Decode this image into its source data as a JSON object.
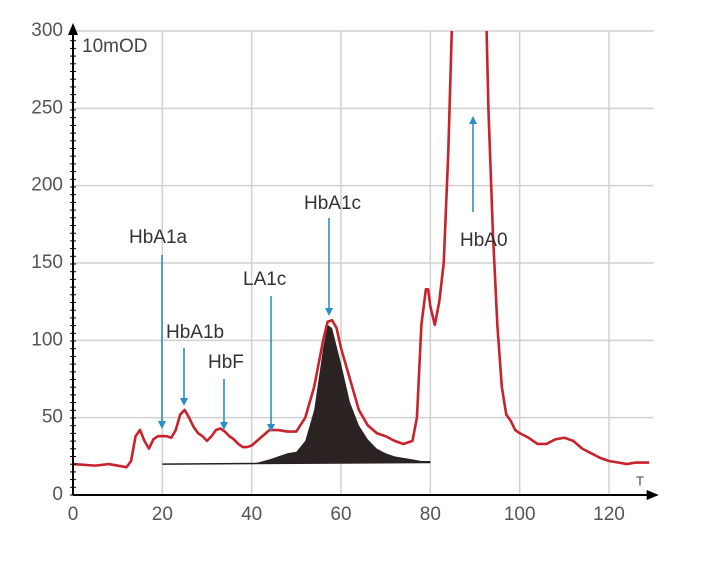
{
  "chart_data": {
    "type": "line",
    "y_label": "10mOD",
    "x_label": "T",
    "xlim": [
      0,
      130
    ],
    "ylim": [
      0,
      300
    ],
    "xticks": [
      0,
      20,
      40,
      60,
      80,
      100,
      120
    ],
    "yticks": [
      0,
      50,
      100,
      150,
      200,
      250,
      300
    ],
    "grid": true,
    "series": [
      {
        "color": "#c8232c",
        "x": [
          0,
          5,
          8,
          12,
          13,
          14,
          15,
          16,
          17,
          18,
          19,
          20,
          21,
          22,
          23,
          24,
          25,
          26,
          27,
          28,
          29,
          30,
          31,
          32,
          33,
          34,
          35,
          36,
          37,
          38,
          39,
          40,
          42,
          44,
          46,
          48,
          50,
          52,
          54,
          56,
          57,
          58,
          59,
          60,
          62,
          64,
          66,
          68,
          70,
          72,
          74,
          76,
          77,
          78,
          79,
          79.5,
          80,
          81,
          82,
          83,
          84,
          84.8,
          88,
          92.6,
          93,
          94,
          95,
          96,
          97,
          98,
          99,
          100,
          102,
          104,
          106,
          108,
          110,
          112,
          114,
          116,
          118,
          120,
          122,
          124,
          126,
          128,
          129
        ],
        "values": [
          20,
          19,
          20,
          18,
          22,
          38,
          42,
          35,
          30,
          36,
          38,
          38,
          38,
          37,
          42,
          52,
          55,
          50,
          44,
          40,
          38,
          35,
          38,
          42,
          43,
          41,
          38,
          36,
          33,
          31,
          31,
          32,
          37,
          42,
          42,
          41,
          41,
          50,
          70,
          100,
          112,
          113,
          108,
          95,
          75,
          55,
          45,
          40,
          38,
          35,
          33,
          35,
          50,
          110,
          133,
          133,
          122,
          110,
          125,
          150,
          220,
          300,
          null,
          300,
          250,
          170,
          110,
          70,
          52,
          48,
          42,
          40,
          37,
          33,
          33,
          36,
          37,
          35,
          30,
          27,
          24,
          22,
          21,
          20,
          21,
          21,
          21
        ]
      }
    ],
    "baseline": {
      "x": [
        20,
        80
      ],
      "values": [
        20,
        21
      ]
    },
    "shaded": {
      "color": "#2b2222",
      "x": [
        40,
        44,
        48,
        50,
        52,
        54,
        56,
        57,
        58,
        60,
        62,
        64,
        66,
        68,
        70,
        72,
        74,
        76,
        78,
        80
      ],
      "values": [
        20,
        23,
        27,
        28,
        35,
        55,
        95,
        110,
        108,
        85,
        60,
        45,
        36,
        30,
        27,
        25,
        24,
        23,
        22,
        22
      ]
    },
    "annotations": [
      "HbA1a",
      "HbA1b",
      "HbF",
      "LA1c",
      "HbA1c",
      "HbA0"
    ]
  }
}
